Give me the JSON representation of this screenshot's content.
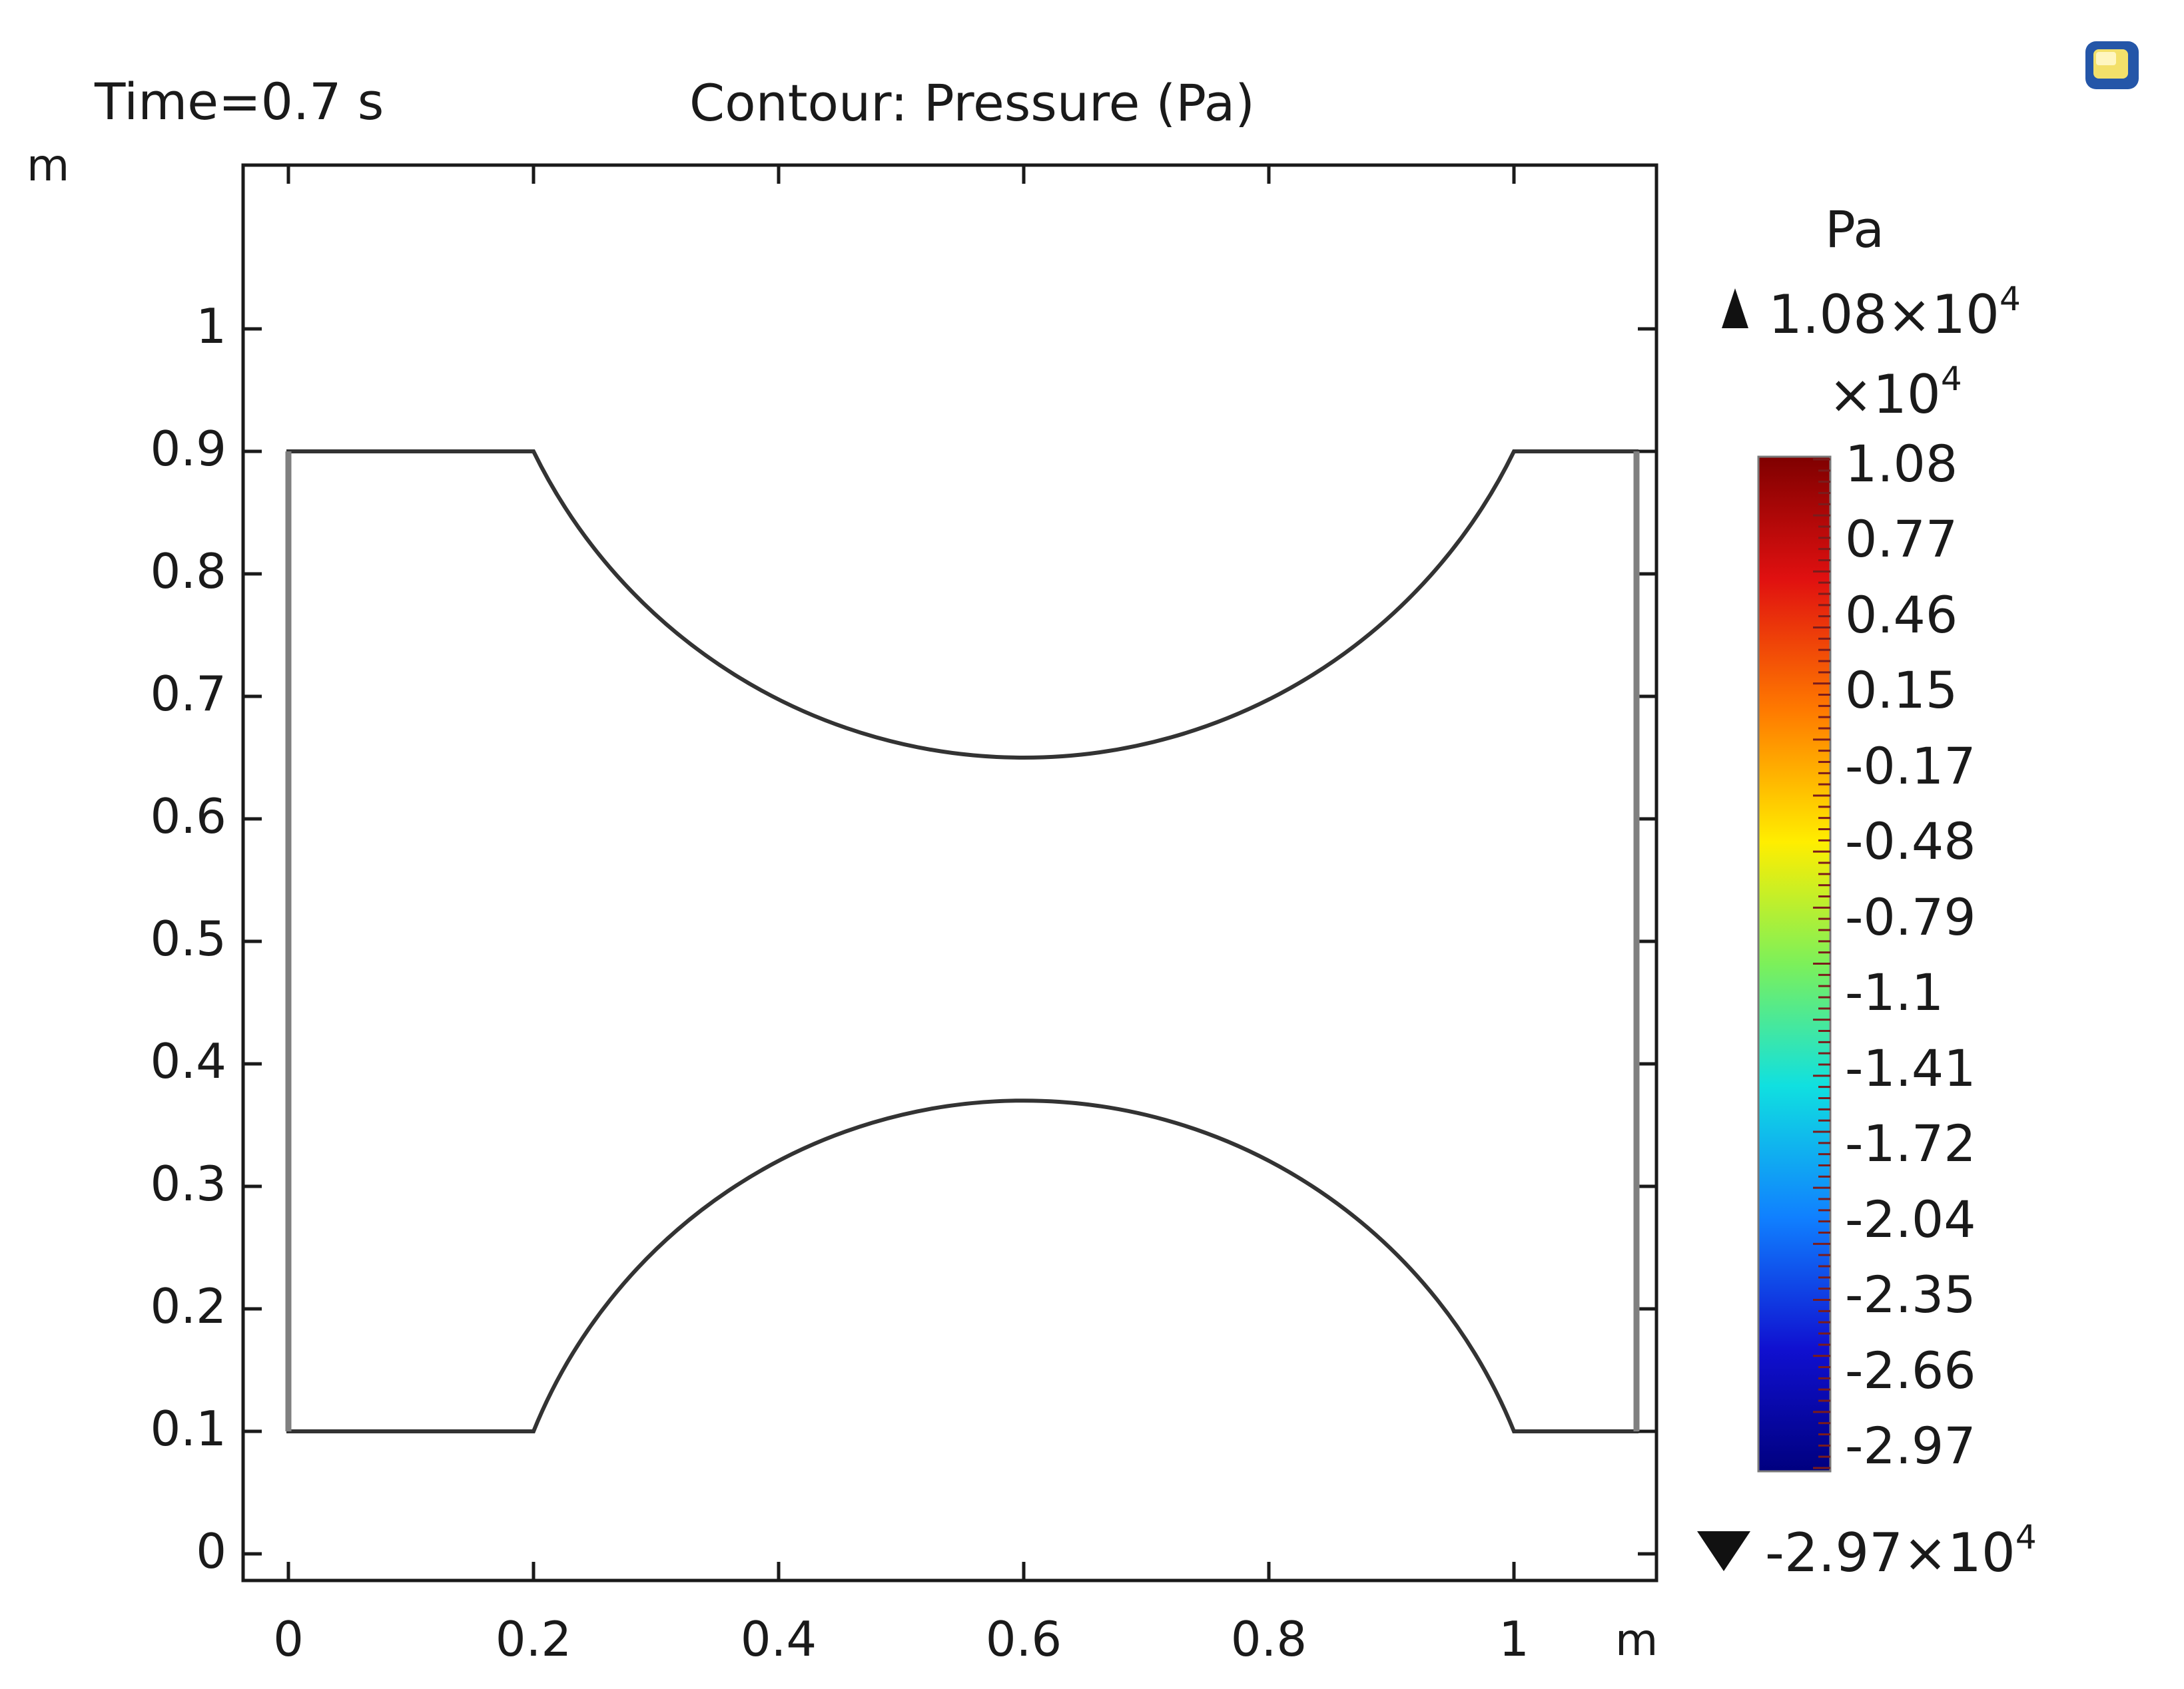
{
  "header": {
    "time_label": "Time=0.7 s",
    "plot_title": "Contour: Pressure (Pa)"
  },
  "colorbar": {
    "unit": "Pa",
    "max_prefix": "1.08×10",
    "max_exp": "4",
    "scale_prefix": "×10",
    "scale_exp": "4",
    "min_prefix": "-2.97×10",
    "min_exp": "4",
    "ticks": [
      "1.08",
      "0.77",
      "0.46",
      "0.15",
      "-0.17",
      "-0.48",
      "-0.79",
      "-1.1",
      "-1.41",
      "-1.72",
      "-2.04",
      "-2.35",
      "-2.66",
      "-2.97"
    ],
    "colormap": "rainbow (red → yellow → green → cyan → blue)"
  },
  "chart_data": {
    "type": "contour",
    "title": "Contour: Pressure (Pa)",
    "annotation": "Time=0.7 s",
    "quantity": "Pressure",
    "unit": "Pa",
    "xlabel": "m",
    "ylabel": "m",
    "xlim": [
      -0.04,
      1.12
    ],
    "ylim": [
      -0.02,
      1.15
    ],
    "xticks": [
      0,
      0.2,
      0.4,
      0.6,
      0.8,
      1
    ],
    "yticks": [
      0,
      0.1,
      0.2,
      0.3,
      0.4,
      0.5,
      0.6,
      0.7,
      0.8,
      0.9,
      1
    ],
    "xtick_labels": [
      "0",
      "0.2",
      "0.4",
      "0.6",
      "0.8",
      "1"
    ],
    "ytick_labels": [
      "0",
      "0.1",
      "0.2",
      "0.3",
      "0.4",
      "0.5",
      "0.6",
      "0.7",
      "0.8",
      "0.9",
      "1"
    ],
    "value_range": [
      -29700,
      10800
    ],
    "domain": {
      "outline": "rectangle x 0–1.1, y 0.1–0.9 with two circular cut-outs (top and bottom) forming a throat",
      "x_min": 0,
      "x_max": 1.1,
      "y_min": 0.1,
      "y_max": 0.9,
      "top_arc": {
        "x_start": 0.2,
        "x_end": 1.0,
        "y_lowest": 0.65,
        "y_at_ends": 0.9
      },
      "bottom_arc": {
        "x_start": 0.2,
        "x_end": 1.0,
        "y_highest": 0.37,
        "y_at_ends": 0.1
      },
      "throat_x": 0.6
    },
    "contour_levels": 40,
    "grid": false,
    "legend": "colorbar right"
  }
}
